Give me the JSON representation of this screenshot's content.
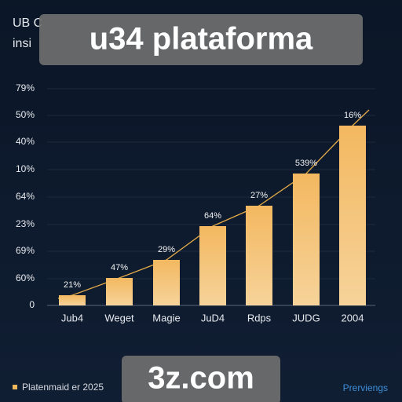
{
  "header": {
    "behind_lines": [
      "UB C",
      "insi"
    ],
    "overlay_title": "u34 plataforma"
  },
  "axis": {
    "labels": [
      "79%",
      "50%",
      "40%",
      "10%",
      "64%",
      "23%",
      "69%",
      "60%",
      "0"
    ]
  },
  "bars": {
    "categories": [
      "Jub4",
      "Weget",
      "Magie",
      "JuD4",
      "Rdps",
      "JUDG",
      "2004"
    ],
    "labels": [
      "21%",
      "47%",
      "29%",
      "64%",
      "27%",
      "539%",
      "16%"
    ]
  },
  "footer": {
    "legend": "Platenmaid er 2025",
    "overlay_domain": "3z.com",
    "right_text": "Prerviengs"
  }
}
